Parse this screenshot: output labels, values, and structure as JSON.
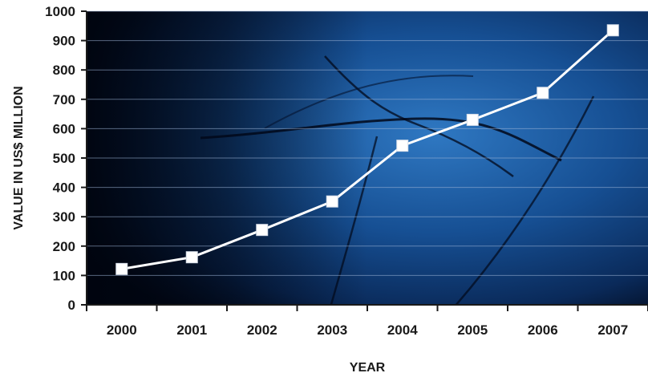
{
  "chart_data": {
    "type": "line",
    "xlabel": "YEAR",
    "ylabel": "VALUE IN US$ MILLION",
    "categories": [
      "2000",
      "2001",
      "2002",
      "2003",
      "2004",
      "2005",
      "2006",
      "2007"
    ],
    "series": [
      {
        "values": [
          122,
          162,
          255,
          352,
          542,
          630,
          722,
          935
        ]
      }
    ],
    "ylim": [
      0,
      1000
    ],
    "yticks": [
      0,
      100,
      200,
      300,
      400,
      500,
      600,
      700,
      800,
      900,
      1000
    ],
    "grid": true,
    "colors": {
      "line": "#ffffff",
      "marker_fill": "#ffffff",
      "marker_stroke": "#d6dde8",
      "grid": "#9fb6d8",
      "axis": "#1a1a1a",
      "background_dark": "#020a1c",
      "background_mid": "#0f3d7a",
      "background_light": "#2a6fb8"
    }
  }
}
